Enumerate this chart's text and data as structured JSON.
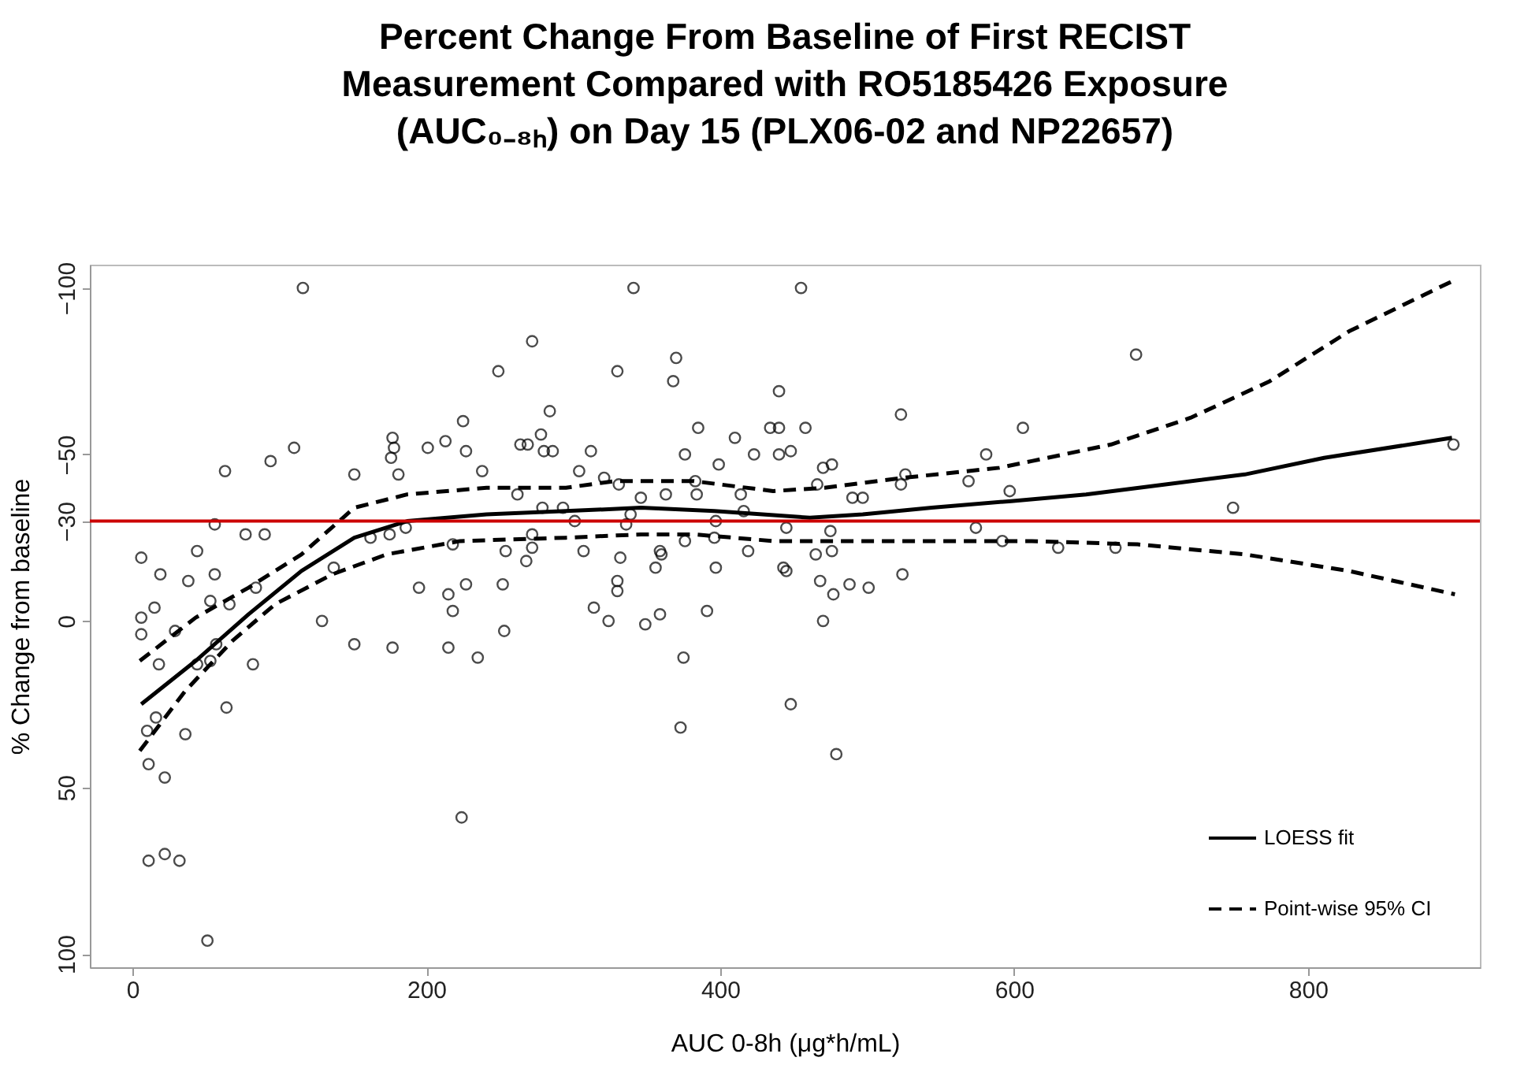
{
  "chart_data": {
    "type": "scatter",
    "title": "Percent Change From Baseline of First RECIST Measurement Compared with RO5185426 Exposure (AUC₀₋₈ₕ) on Day 15 (PLX06-02 and NP22657)",
    "xlabel": "AUC 0-8h (μg*h/mL)",
    "ylabel": "% Change from baseline",
    "xlim": [
      -29,
      917
    ],
    "xticks": [
      0,
      200,
      400,
      600,
      800
    ],
    "ylim": [
      104,
      -107
    ],
    "yticks": [
      -100,
      -50,
      -30,
      0,
      50,
      100
    ],
    "grid": false,
    "legend": "bottom right",
    "ref_lines": [
      {
        "axis": "y",
        "value": -30,
        "color": "#cc0000"
      }
    ],
    "series": [
      {
        "marker": "circle",
        "color": "#000000",
        "x": [
          116,
          272,
          249,
          284,
          225,
          177,
          178,
          213,
          201,
          227,
          264,
          269,
          278,
          280,
          286,
          110,
          94,
          63,
          151,
          181,
          176,
          238,
          262,
          279,
          56,
          77,
          90,
          186,
          162,
          175,
          6,
          44,
          19,
          38,
          56,
          137,
          218,
          254,
          272,
          272,
          268,
          84,
          195,
          227,
          215,
          252,
          218,
          15,
          6,
          6,
          29,
          53,
          66,
          129,
          253,
          151,
          177,
          215,
          235,
          57,
          18,
          44,
          53,
          82,
          64,
          16,
          10,
          36,
          11,
          22,
          224,
          11,
          22,
          32,
          51,
          341,
          455,
          370,
          330,
          368,
          440,
          523,
          385,
          434,
          440,
          458,
          410,
          312,
          376,
          423,
          440,
          448,
          581,
          304,
          399,
          470,
          476,
          321,
          331,
          383,
          384,
          346,
          363,
          414,
          466,
          490,
          497,
          526,
          523,
          569,
          597,
          293,
          301,
          336,
          339,
          397,
          416,
          445,
          475,
          574,
          307,
          332,
          360,
          359,
          376,
          396,
          419,
          465,
          476,
          592,
          356,
          397,
          443,
          445,
          468,
          488,
          501,
          477,
          524,
          330,
          330,
          314,
          324,
          349,
          359,
          391,
          470,
          375,
          448,
          373,
          479,
          683,
          606,
          749,
          899,
          630,
          669
        ],
        "values": [
          -100,
          -84,
          -75,
          -63,
          -60,
          -55,
          -52,
          -54,
          -52,
          -51,
          -53,
          -53,
          -56,
          -51,
          -51,
          -52,
          -48,
          -45,
          -44,
          -44,
          -49,
          -45,
          -38,
          -34,
          -29,
          -26,
          -26,
          -28,
          -25,
          -26,
          -19,
          -21,
          -14,
          -12,
          -14,
          -16,
          -23,
          -21,
          -26,
          -22,
          -18,
          -10,
          -10,
          -11,
          -8,
          -11,
          -3,
          -4,
          -1,
          4,
          3,
          -6,
          -5,
          0,
          3,
          7,
          8,
          8,
          11,
          7,
          13,
          13,
          12,
          13,
          26,
          29,
          33,
          34,
          43,
          47,
          59,
          72,
          70,
          72,
          96,
          -100,
          -100,
          -79,
          -75,
          -72,
          -69,
          -62,
          -58,
          -58,
          -58,
          -58,
          -55,
          -51,
          -50,
          -50,
          -50,
          -51,
          -50,
          -45,
          -47,
          -46,
          -47,
          -43,
          -41,
          -42,
          -38,
          -37,
          -38,
          -38,
          -41,
          -37,
          -37,
          -44,
          -41,
          -42,
          -39,
          -34,
          -30,
          -29,
          -32,
          -30,
          -33,
          -28,
          -27,
          -28,
          -21,
          -19,
          -20,
          -21,
          -24,
          -25,
          -21,
          -20,
          -21,
          -24,
          -16,
          -16,
          -16,
          -15,
          -12,
          -11,
          -10,
          -8,
          -14,
          -12,
          -9,
          -4,
          0,
          1,
          -2,
          -3,
          0,
          11,
          25,
          32,
          40,
          -80,
          -58,
          -34,
          -53,
          -22,
          -22
        ]
      },
      {
        "type": "line",
        "name": "LOESS fit",
        "color": "#000000",
        "line_style": "solid",
        "x": [
          6,
          43,
          79,
          115,
          151,
          187,
          241,
          295,
          346,
          396,
          461,
          497,
          544,
          598,
          649,
          703,
          757,
          811,
          898
        ],
        "values": [
          25,
          12,
          -2,
          -15,
          -25,
          -30,
          -32,
          -33,
          -34,
          -33,
          -31,
          -32,
          -34,
          -36,
          -38,
          -41,
          -44,
          -49,
          -55
        ]
      },
      {
        "type": "line",
        "name": "Point-wise 95% CI",
        "color": "#000000",
        "line_style": "dashed",
        "x": [
          5,
          43,
          79,
          115,
          151,
          187,
          241,
          295,
          328,
          382,
          436,
          471,
          525,
          590,
          612,
          666,
          720,
          774,
          828,
          898
        ],
        "values": [
          12,
          -1,
          -10,
          -20,
          -34,
          -38,
          -40,
          -40,
          -42,
          -42,
          -39,
          -40,
          -43,
          -46,
          -48,
          -53,
          -61,
          -72,
          -87,
          -102
        ]
      },
      {
        "type": "line",
        "color": "#000000",
        "line_style": "dashed",
        "x": [
          5,
          36,
          68,
          97,
          136,
          173,
          223,
          295,
          346,
          382,
          436,
          525,
          590,
          612,
          684,
          757,
          828,
          900
        ],
        "values": [
          39,
          21,
          6,
          -5,
          -14,
          -20,
          -24,
          -25,
          -26,
          -26,
          -24,
          -24,
          -24,
          -24,
          -23,
          -20,
          -15,
          -8
        ]
      }
    ]
  }
}
